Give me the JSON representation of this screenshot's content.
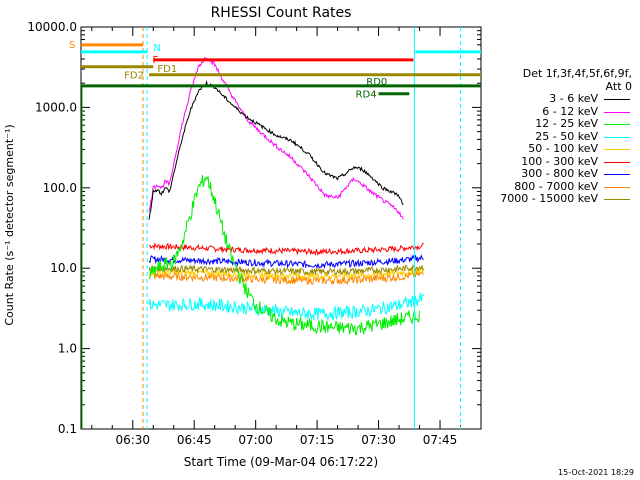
{
  "chart_data": {
    "type": "line",
    "title": "RHESSI Count Rates",
    "xlabel": "Start Time (09-Mar-04 06:17:22)",
    "ylabel": "Count Rate (s⁻¹ detector segment⁻¹)",
    "yscale": "log",
    "ylim": [
      0.1,
      10000
    ],
    "xlim": [
      "06:17:22",
      "07:55:00"
    ],
    "ytick_labels": [
      "0.1",
      "1.0",
      "10.0",
      "100.0",
      "1000.0",
      "10000.0"
    ],
    "xtick_labels": [
      "06:30",
      "06:45",
      "07:00",
      "07:15",
      "07:30",
      "07:45"
    ],
    "legend_header": [
      "Det 1f,3f,4f,5f,6f,9f,",
      "Att 0"
    ],
    "legend_position": "right",
    "series": [
      {
        "name": "3 - 6 keV",
        "color": "#000000",
        "x": [
          "06:34",
          "06:35",
          "06:36",
          "06:37",
          "06:38",
          "06:39",
          "06:40",
          "06:42",
          "06:44",
          "06:46",
          "06:48",
          "06:50",
          "06:52",
          "06:55",
          "06:58",
          "07:01",
          "07:05",
          "07:09",
          "07:13",
          "07:17",
          "07:20",
          "07:22",
          "07:24",
          "07:26",
          "07:28",
          "07:31",
          "07:33",
          "07:35",
          "07:36"
        ],
        "y": [
          40,
          90,
          95,
          85,
          100,
          90,
          150,
          400,
          900,
          1600,
          2000,
          1800,
          1400,
          1000,
          750,
          600,
          450,
          380,
          260,
          150,
          130,
          150,
          180,
          170,
          140,
          100,
          90,
          80,
          60
        ]
      },
      {
        "name": "6 - 12 keV",
        "color": "#ff00ff",
        "x": [
          "06:34",
          "06:35",
          "06:36",
          "06:37",
          "06:38",
          "06:39",
          "06:40",
          "06:42",
          "06:44",
          "06:46",
          "06:48",
          "06:50",
          "06:52",
          "06:55",
          "06:58",
          "07:01",
          "07:05",
          "07:09",
          "07:13",
          "07:17",
          "07:20",
          "07:22",
          "07:24",
          "07:26",
          "07:28",
          "07:31",
          "07:33",
          "07:35",
          "07:36"
        ],
        "y": [
          50,
          100,
          110,
          100,
          120,
          110,
          200,
          600,
          1500,
          3200,
          4300,
          3400,
          2200,
          1200,
          700,
          500,
          330,
          230,
          140,
          80,
          75,
          100,
          130,
          110,
          90,
          70,
          60,
          50,
          40
        ]
      },
      {
        "name": "12 - 25 keV",
        "color": "#00ee00",
        "x": [
          "06:34",
          "06:36",
          "06:38",
          "06:40",
          "06:42",
          "06:44",
          "06:46",
          "06:48",
          "06:50",
          "06:52",
          "06:54",
          "06:56",
          "06:58",
          "07:00",
          "07:03",
          "07:06",
          "07:10",
          "07:15",
          "07:20",
          "07:25",
          "07:30",
          "07:35",
          "07:40"
        ],
        "y": [
          8,
          10,
          11,
          12,
          20,
          45,
          100,
          140,
          70,
          30,
          14,
          8,
          5,
          3.5,
          2.7,
          2.2,
          2.0,
          1.9,
          1.8,
          1.8,
          2.0,
          2.3,
          2.6
        ]
      },
      {
        "name": "25 - 50 keV",
        "color": "#00ffff",
        "x": [
          "06:34",
          "06:40",
          "06:46",
          "06:52",
          "06:58",
          "07:03",
          "07:08",
          "07:15",
          "07:22",
          "07:28",
          "07:34",
          "07:38",
          "07:41"
        ],
        "y": [
          3.5,
          3.5,
          3.6,
          3.4,
          3.2,
          3.0,
          2.8,
          2.7,
          2.8,
          3.0,
          3.4,
          3.8,
          4.2
        ]
      },
      {
        "name": "50 - 100 keV",
        "color": "#ffcc00",
        "x": [
          "06:34",
          "06:45",
          "06:55",
          "07:05",
          "07:15",
          "07:25",
          "07:35",
          "07:41"
        ],
        "y": [
          9,
          8.8,
          8.5,
          8.2,
          8.0,
          8.2,
          8.8,
          9.5
        ]
      },
      {
        "name": "100 - 300 keV",
        "color": "#ff0000",
        "x": [
          "06:34",
          "06:45",
          "06:55",
          "07:05",
          "07:15",
          "07:25",
          "07:35",
          "07:41"
        ],
        "y": [
          19,
          18,
          17,
          16.5,
          16,
          16.5,
          17.5,
          19
        ]
      },
      {
        "name": "300 - 800 keV",
        "color": "#0000ff",
        "x": [
          "06:34",
          "06:45",
          "06:55",
          "07:05",
          "07:15",
          "07:25",
          "07:35",
          "07:41"
        ],
        "y": [
          13,
          12.5,
          12,
          11.5,
          11,
          11.5,
          12.5,
          13.5
        ]
      },
      {
        "name": "800 - 7000 keV",
        "color": "#ff8800",
        "x": [
          "06:34",
          "06:45",
          "06:55",
          "07:05",
          "07:15",
          "07:25",
          "07:35",
          "07:41"
        ],
        "y": [
          8,
          7.8,
          7.5,
          7.2,
          7.0,
          7.2,
          7.8,
          8.5
        ]
      },
      {
        "name": "7000 - 15000 keV",
        "color": "#998800",
        "x": [
          "06:34",
          "06:45",
          "06:55",
          "07:05",
          "07:15",
          "07:25",
          "07:35",
          "07:41"
        ],
        "y": [
          10,
          9.8,
          9.5,
          9.2,
          9.0,
          9.2,
          9.8,
          10.5
        ]
      }
    ],
    "flag_bars": [
      {
        "label": "S",
        "color": "#ff8800",
        "x": [
          "06:17:22",
          "06:32:30"
        ],
        "y": 6000
      },
      {
        "label": "N",
        "color": "#00ffff",
        "x": [
          "06:17:22",
          "06:33:30"
        ],
        "y": 4900,
        "label_x": "06:35"
      },
      {
        "label": "N",
        "color": "#00ffff",
        "x": [
          "07:39:00",
          "07:55:00"
        ],
        "y": 4900,
        "label_x": null
      },
      {
        "label": "F",
        "color": "#ff0000",
        "x": [
          "06:35:00",
          "07:38:30"
        ],
        "y": 3900
      },
      {
        "label": "FD1",
        "color": "#998800",
        "x": [
          "06:17:22",
          "06:35:00"
        ],
        "y": 3200
      },
      {
        "label": "FD2",
        "color": "#998800",
        "x": [
          "06:34:00",
          "07:55:00"
        ],
        "y": 2550
      },
      {
        "label": "RD0",
        "color": "#006600",
        "x": [
          "06:17:22",
          "07:55:00"
        ],
        "y": 1850
      },
      {
        "label": "RD4",
        "color": "#006600",
        "x": [
          "07:30:00",
          "07:37:30"
        ],
        "y": 1480
      }
    ],
    "vertical_markers": [
      {
        "x": "06:32:30",
        "color": "#ff8800",
        "style": "dashed"
      },
      {
        "x": "06:33:30",
        "color": "#00ffff",
        "style": "dashed"
      },
      {
        "x": "07:38:45",
        "color": "#00ffff",
        "style": "solid"
      },
      {
        "x": "07:50:00",
        "color": "#00ffff",
        "style": "dashed"
      }
    ]
  },
  "timestamp": "15-Oct-2021 18:29"
}
